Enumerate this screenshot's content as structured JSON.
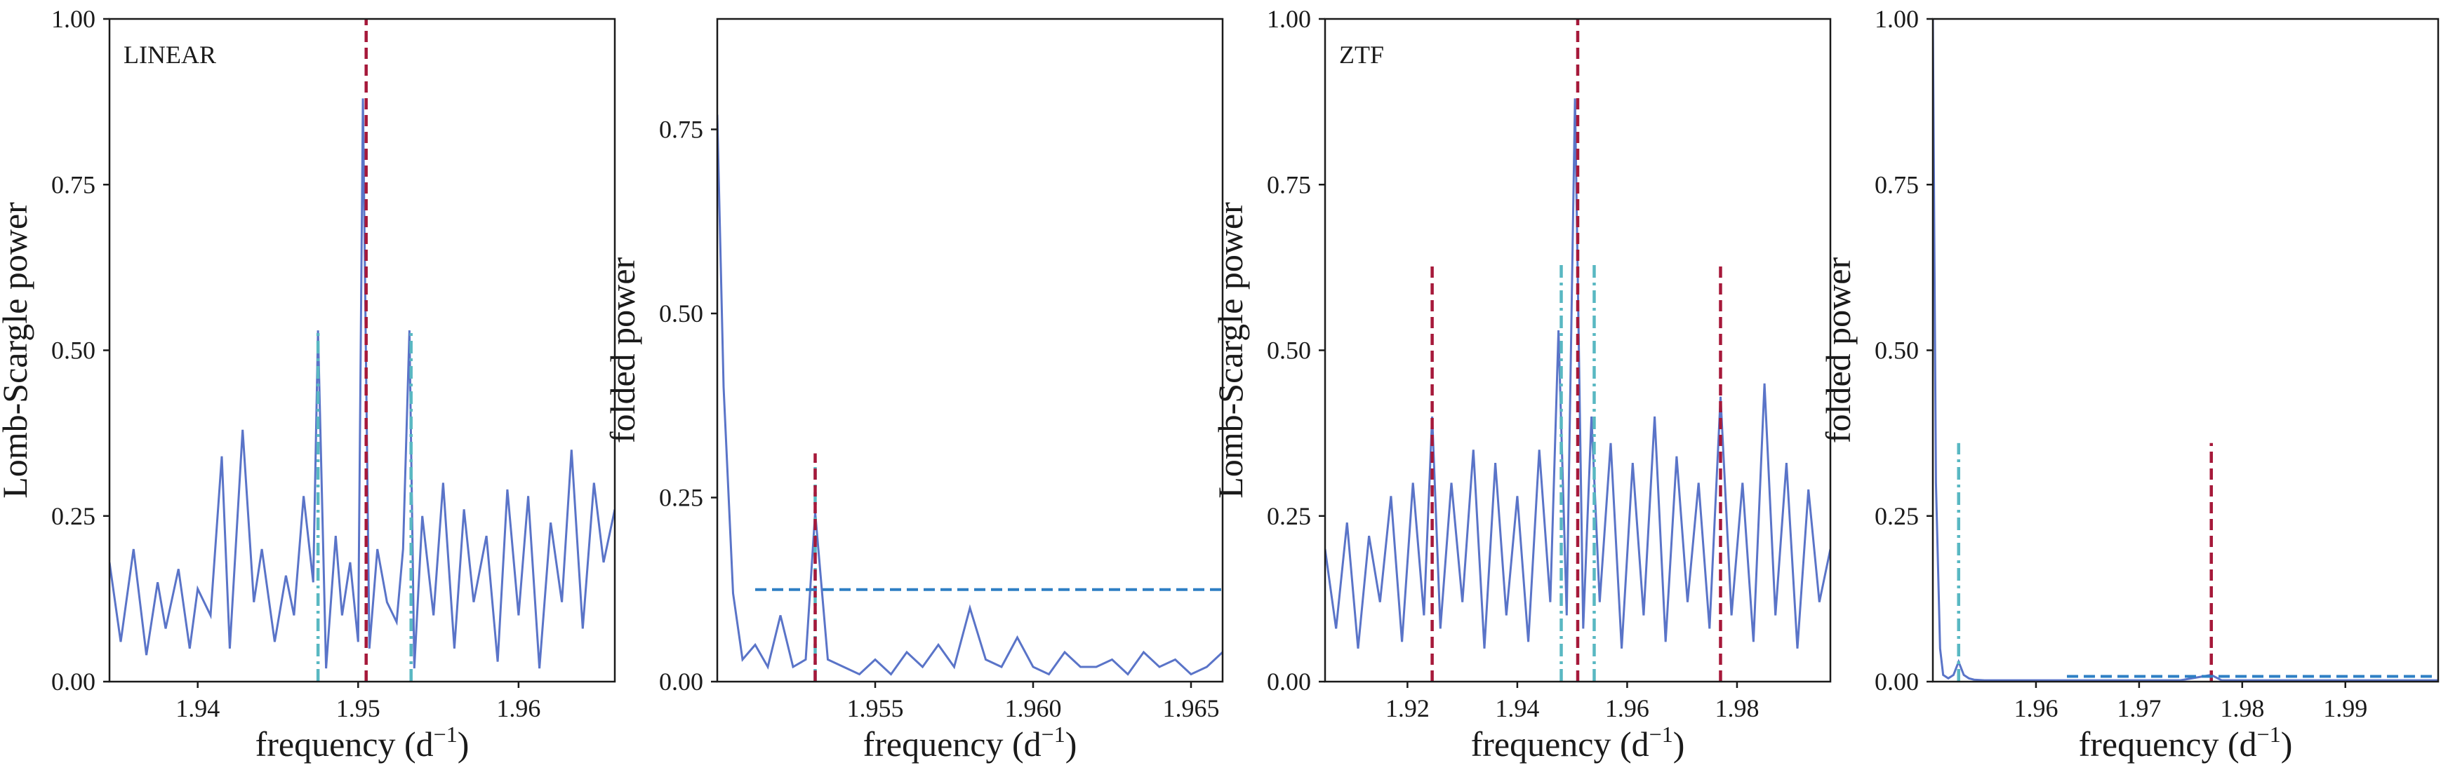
{
  "figure": {
    "panels": [
      {
        "label": "LINEAR",
        "xlabel": "frequency",
        "ylabel": "Lomb-Scargle power"
      },
      {
        "label": "",
        "xlabel": "frequency",
        "ylabel": "folded power"
      },
      {
        "label": "ZTF",
        "xlabel": "frequency",
        "ylabel": "Lomb-Scargle power"
      },
      {
        "label": "",
        "xlabel": "frequency",
        "ylabel": "folded power"
      }
    ],
    "xunit": "(d",
    "xunit_exp": "−1",
    "xunit_close": ")"
  },
  "colors": {
    "curve": "#5a74c8",
    "red_line": "#a6193a",
    "cyan_line": "#59b8c2",
    "blue_dashed": "#2e7fc4",
    "axis": "#1a1a1a"
  },
  "chart_data": [
    {
      "type": "line",
      "label": "LINEAR",
      "xlabel": "frequency (d⁻¹)",
      "ylabel": "Lomb-Scargle power",
      "xlim": [
        1.9345,
        1.966
      ],
      "ylim": [
        0,
        1.0
      ],
      "xticks": [
        1.94,
        1.95,
        1.96
      ],
      "xtick_labels": [
        "1.94",
        "1.95",
        "1.96"
      ],
      "yticks": [
        0,
        0.25,
        0.5,
        0.75,
        1.0
      ],
      "ytick_labels": [
        "0.00",
        "0.25",
        "0.50",
        "0.75",
        "1.00"
      ],
      "series": [
        {
          "x": [
            1.9345,
            1.9352,
            1.936,
            1.9368,
            1.9375,
            1.938,
            1.9388,
            1.9395,
            1.94,
            1.9408,
            1.9415,
            1.942,
            1.9428,
            1.9435,
            1.944,
            1.9448,
            1.9455,
            1.946,
            1.9466,
            1.9472,
            1.9475,
            1.948,
            1.9486,
            1.949,
            1.9495,
            1.95,
            1.9503,
            1.9507,
            1.9512,
            1.9518,
            1.9524,
            1.9528,
            1.9532,
            1.9535,
            1.954,
            1.9547,
            1.9553,
            1.956,
            1.9566,
            1.9572,
            1.958,
            1.9587,
            1.9593,
            1.96,
            1.9606,
            1.9613,
            1.962,
            1.9627,
            1.9633,
            1.964,
            1.9647,
            1.9653,
            1.966
          ],
          "y": [
            0.18,
            0.06,
            0.2,
            0.04,
            0.15,
            0.08,
            0.17,
            0.05,
            0.14,
            0.1,
            0.34,
            0.05,
            0.38,
            0.12,
            0.2,
            0.06,
            0.16,
            0.1,
            0.28,
            0.15,
            0.53,
            0.02,
            0.22,
            0.1,
            0.18,
            0.06,
            0.88,
            0.05,
            0.2,
            0.12,
            0.09,
            0.2,
            0.53,
            0.02,
            0.25,
            0.1,
            0.3,
            0.05,
            0.26,
            0.12,
            0.22,
            0.03,
            0.29,
            0.1,
            0.28,
            0.02,
            0.24,
            0.12,
            0.35,
            0.08,
            0.3,
            0.18,
            0.26
          ]
        }
      ],
      "vlines": [
        {
          "x": 1.9475,
          "ymax": 0.53,
          "style": "cyan-dashdot"
        },
        {
          "x": 1.9505,
          "ymax": 1.0,
          "style": "red-dashed"
        },
        {
          "x": 1.9533,
          "ymax": 0.53,
          "style": "cyan-dashdot"
        }
      ],
      "hlines": []
    },
    {
      "type": "line",
      "label": "",
      "xlabel": "frequency (d⁻¹)",
      "ylabel": "folded power",
      "xlim": [
        1.95,
        1.966
      ],
      "ylim": [
        0,
        0.9
      ],
      "xticks": [
        1.955,
        1.96,
        1.965
      ],
      "xtick_labels": [
        "1.955",
        "1.960",
        "1.965"
      ],
      "yticks": [
        0,
        0.25,
        0.5,
        0.75
      ],
      "ytick_labels": [
        "0.00",
        "0.25",
        "0.50",
        "0.75"
      ],
      "series": [
        {
          "x": [
            1.95,
            1.9502,
            1.9505,
            1.9508,
            1.9512,
            1.9516,
            1.952,
            1.9524,
            1.9528,
            1.9531,
            1.9535,
            1.954,
            1.9545,
            1.955,
            1.9555,
            1.956,
            1.9565,
            1.957,
            1.9575,
            1.958,
            1.9585,
            1.959,
            1.9595,
            1.96,
            1.9605,
            1.961,
            1.9615,
            1.962,
            1.9625,
            1.963,
            1.9635,
            1.964,
            1.9645,
            1.965,
            1.9655,
            1.966
          ],
          "y": [
            0.77,
            0.4,
            0.12,
            0.03,
            0.05,
            0.02,
            0.09,
            0.02,
            0.03,
            0.23,
            0.03,
            0.02,
            0.01,
            0.03,
            0.01,
            0.04,
            0.02,
            0.05,
            0.02,
            0.1,
            0.03,
            0.02,
            0.06,
            0.02,
            0.01,
            0.04,
            0.02,
            0.02,
            0.03,
            0.01,
            0.04,
            0.02,
            0.03,
            0.01,
            0.02,
            0.04
          ]
        }
      ],
      "vlines": [
        {
          "x": 1.9531,
          "ymax": 0.3,
          "style": "cyan-dashdot"
        },
        {
          "x": 1.9531,
          "ymax": 0.31,
          "style": "red-dashed"
        }
      ],
      "hlines": [
        {
          "y": 0.125,
          "xmin": 1.9512,
          "xmax": 1.966,
          "style": "blue-dashed"
        }
      ]
    },
    {
      "type": "line",
      "label": "ZTF",
      "xlabel": "frequency (d⁻¹)",
      "ylabel": "Lomb-Scargle power",
      "xlim": [
        1.905,
        1.997
      ],
      "ylim": [
        0,
        1.0
      ],
      "xticks": [
        1.92,
        1.94,
        1.96,
        1.98
      ],
      "xtick_labels": [
        "1.92",
        "1.94",
        "1.96",
        "1.98"
      ],
      "yticks": [
        0,
        0.25,
        0.5,
        0.75,
        1.0
      ],
      "ytick_labels": [
        "0.00",
        "0.25",
        "0.50",
        "0.75",
        "1.00"
      ],
      "series": [
        {
          "x": [
            1.905,
            1.907,
            1.909,
            1.911,
            1.913,
            1.915,
            1.917,
            1.919,
            1.921,
            1.923,
            1.9245,
            1.926,
            1.928,
            1.93,
            1.932,
            1.934,
            1.936,
            1.938,
            1.94,
            1.942,
            1.944,
            1.946,
            1.9475,
            1.949,
            1.9505,
            1.952,
            1.9535,
            1.955,
            1.957,
            1.959,
            1.961,
            1.963,
            1.965,
            1.967,
            1.969,
            1.971,
            1.973,
            1.975,
            1.977,
            1.979,
            1.981,
            1.983,
            1.985,
            1.987,
            1.989,
            1.991,
            1.993,
            1.995,
            1.997
          ],
          "y": [
            0.2,
            0.08,
            0.24,
            0.05,
            0.22,
            0.12,
            0.28,
            0.06,
            0.3,
            0.1,
            0.4,
            0.08,
            0.3,
            0.12,
            0.35,
            0.05,
            0.33,
            0.1,
            0.28,
            0.06,
            0.35,
            0.12,
            0.53,
            0.1,
            0.88,
            0.08,
            0.4,
            0.12,
            0.36,
            0.05,
            0.33,
            0.1,
            0.4,
            0.06,
            0.34,
            0.12,
            0.3,
            0.08,
            0.43,
            0.1,
            0.3,
            0.06,
            0.45,
            0.1,
            0.33,
            0.05,
            0.29,
            0.12,
            0.2
          ]
        }
      ],
      "vlines": [
        {
          "x": 1.9245,
          "ymax": 0.63,
          "style": "red-dashed"
        },
        {
          "x": 1.948,
          "ymax": 0.63,
          "style": "cyan-dashdot"
        },
        {
          "x": 1.951,
          "ymax": 1.0,
          "style": "red-dashed"
        },
        {
          "x": 1.954,
          "ymax": 0.63,
          "style": "cyan-dashdot"
        },
        {
          "x": 1.977,
          "ymax": 0.63,
          "style": "red-dashed"
        }
      ],
      "hlines": []
    },
    {
      "type": "line",
      "label": "",
      "xlabel": "frequency (d⁻¹)",
      "ylabel": "folded power",
      "xlim": [
        1.95,
        1.999
      ],
      "ylim": [
        0,
        1.0
      ],
      "xticks": [
        1.96,
        1.97,
        1.98,
        1.99
      ],
      "xtick_labels": [
        "1.96",
        "1.97",
        "1.98",
        "1.99"
      ],
      "yticks": [
        0,
        0.25,
        0.5,
        0.75,
        1.0
      ],
      "ytick_labels": [
        "0.00",
        "0.25",
        "0.50",
        "0.75",
        "1.00"
      ],
      "series": [
        {
          "x": [
            1.95,
            1.9503,
            1.9507,
            1.951,
            1.9515,
            1.952,
            1.9525,
            1.953,
            1.9535,
            1.954,
            1.955,
            1.958,
            1.962,
            1.966,
            1.97,
            1.974,
            1.977,
            1.978,
            1.98,
            1.984,
            1.988,
            1.992,
            1.996,
            1.999
          ],
          "y": [
            1.0,
            0.3,
            0.05,
            0.01,
            0.005,
            0.01,
            0.03,
            0.01,
            0.005,
            0.003,
            0.002,
            0.002,
            0.002,
            0.002,
            0.002,
            0.002,
            0.01,
            0.002,
            0.002,
            0.002,
            0.002,
            0.002,
            0.002,
            0.002
          ]
        }
      ],
      "vlines": [
        {
          "x": 1.9525,
          "ymax": 0.36,
          "style": "cyan-dashdot"
        },
        {
          "x": 1.977,
          "ymax": 0.36,
          "style": "red-dashed"
        }
      ],
      "hlines": [
        {
          "y": 0.008,
          "xmin": 1.963,
          "xmax": 1.999,
          "style": "blue-dashed"
        }
      ]
    }
  ]
}
